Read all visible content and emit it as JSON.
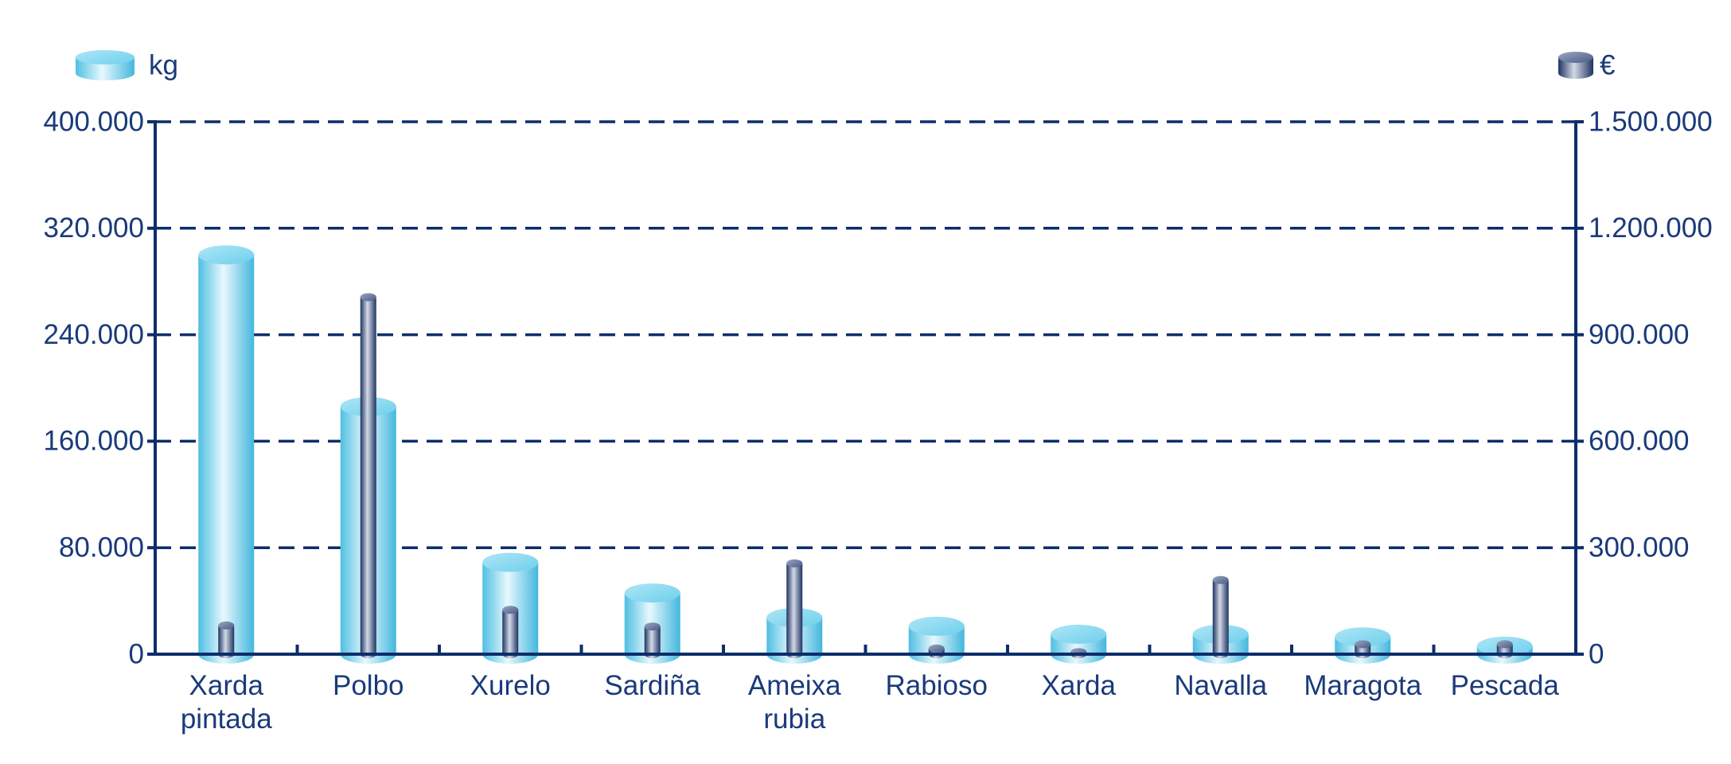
{
  "chart_data": {
    "type": "bar",
    "categories": [
      "Xarda pintada",
      "Polbo",
      "Xurelo",
      "Sardiña",
      "Ameixa rubia",
      "Rabioso",
      "Xarda",
      "Navalla",
      "Maragota",
      "Pescada"
    ],
    "series": [
      {
        "name": "kg",
        "color": "#5cc6e6",
        "values": [
          300000,
          186000,
          69000,
          46000,
          27500,
          21000,
          15000,
          15000,
          13000,
          6000
        ]
      },
      {
        "name": "€",
        "color": "#2c3f6c",
        "axis": "y2",
        "values": [
          81000,
          1006000,
          125000,
          78000,
          256000,
          16000,
          6000,
          209000,
          28000,
          28000
        ]
      }
    ],
    "ylim": [
      0,
      400000
    ],
    "yticks": [
      0,
      {
        "value": 80000,
        "label": "80.000"
      },
      {
        "value": 160000,
        "label": "160.000"
      },
      {
        "value": 240000,
        "label": "240.000"
      },
      {
        "value": 320000,
        "label": "320.000"
      },
      {
        "value": 400000,
        "label": "400.000"
      }
    ],
    "y2lim": [
      0,
      1500000
    ],
    "y2ticks": [
      0,
      {
        "value": 300000,
        "label": "300.000"
      },
      {
        "value": 600000,
        "label": "600.000"
      },
      {
        "value": 900000,
        "label": "900.000"
      },
      {
        "value": 1200000,
        "label": "1.200.000"
      },
      {
        "value": 1500000,
        "label": "1.500.000"
      }
    ],
    "grid": true
  }
}
